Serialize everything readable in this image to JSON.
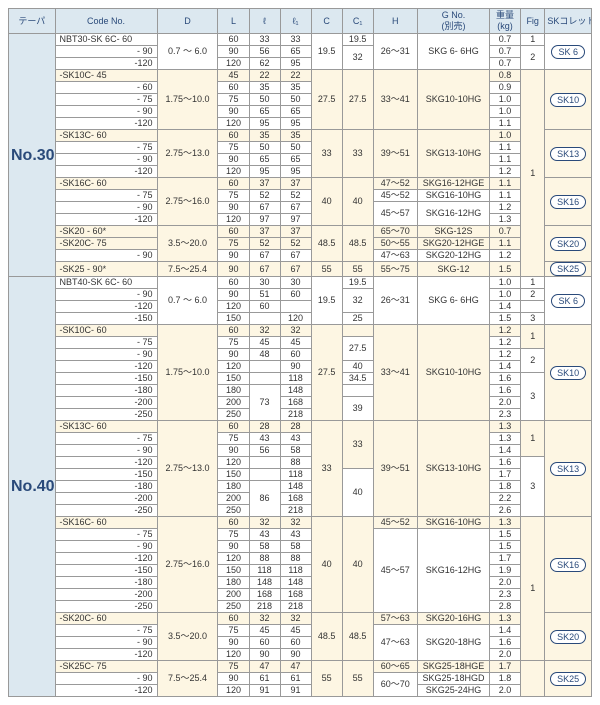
{
  "colors": {
    "header_bg": "#dce8f0",
    "header_fg": "#2a4a7a",
    "highlight_bg": "#fdf6e3",
    "border": "#999999",
    "text": "#333333"
  },
  "headers": {
    "taper": "テーパ",
    "code": "Code No.",
    "D": "D",
    "L": "L",
    "sl": "ℓ",
    "sl1": "ℓ₁",
    "C": "C",
    "C1": "C₁",
    "H": "H",
    "G": "G No.\n(別売)",
    "weight": "重量\n(kg)",
    "fig": "Fig",
    "sk": "SKコレット"
  },
  "tapers": {
    "no30": "No.30",
    "no40": "No.40"
  },
  "sk_labels": {
    "sk6": "SK 6",
    "sk10": "SK10",
    "sk13": "SK13",
    "sk16": "SK16",
    "sk20": "SK20",
    "sk25": "SK25"
  },
  "d_ranges": {
    "d07_60": "0.7 ～ 6.0",
    "d175_100": "1.75～10.0",
    "d275_130": "2.75～13.0",
    "d275_160": "2.75～16.0",
    "d35_200": "3.5～20.0",
    "d75_254": "7.5～25.4"
  },
  "g_labels": {
    "skg6_6hg": "SKG 6- 6HG",
    "skg10_10hg": "SKG10-10HG",
    "skg13_10hg": "SKG13-10HG",
    "skg16_12hge": "SKG16-12HGE",
    "skg16_10hg": "SKG16-10HG",
    "skg16_12hg": "SKG16-12HG",
    "skg_12s": "SKG-12S",
    "skg20_12hge": "SKG20-12HGE",
    "skg20_12hg": "SKG20-12HG",
    "skg_12": "SKG-12",
    "skg20_16hg": "SKG20-16HG",
    "skg20_18hg": "SKG20-18HG",
    "skg25_18hge": "SKG25-18HGE",
    "skg25_18hgd": "SKG25-18HGD",
    "skg25_24hg": "SKG25-24HG"
  },
  "no30": [
    {
      "code": "NBT30-SK 6C- 60",
      "L": "60",
      "sl": "33",
      "sl1": "33",
      "C": "19.5",
      "C1": "19.5",
      "H": "",
      "w": "0.7",
      "fig": "1",
      "hl": false
    },
    {
      "code": "- 90",
      "L": "90",
      "sl": "56",
      "sl1": "65",
      "C": "",
      "C1": "32",
      "H": "26～31",
      "w": "0.7",
      "fig": "",
      "hl": false,
      "fig_val": "2"
    },
    {
      "code": "-120",
      "L": "120",
      "sl": "62",
      "sl1": "95",
      "C": "",
      "C1": "",
      "H": "",
      "w": "0.7",
      "fig": "",
      "hl": false
    },
    {
      "code": "-SK10C- 45",
      "L": "45",
      "sl": "22",
      "sl1": "22",
      "C": "",
      "C1": "",
      "H": "",
      "w": "0.8",
      "fig": "",
      "hl": true
    },
    {
      "code": "- 60",
      "L": "60",
      "sl": "35",
      "sl1": "35",
      "C": "",
      "C1": "",
      "H": "",
      "w": "0.9",
      "fig": "",
      "hl": false
    },
    {
      "code": "- 75",
      "L": "75",
      "sl": "50",
      "sl1": "50",
      "C": "27.5",
      "C1": "27.5",
      "H": "33～41",
      "w": "1.0",
      "fig": "",
      "hl": false
    },
    {
      "code": "- 90",
      "L": "90",
      "sl": "65",
      "sl1": "65",
      "C": "",
      "C1": "",
      "H": "",
      "w": "1.0",
      "fig": "",
      "hl": false
    },
    {
      "code": "-120",
      "L": "120",
      "sl": "95",
      "sl1": "95",
      "C": "",
      "C1": "",
      "H": "",
      "w": "1.1",
      "fig": "",
      "hl": false
    },
    {
      "code": "-SK13C- 60",
      "L": "60",
      "sl": "35",
      "sl1": "35",
      "C": "",
      "C1": "",
      "H": "",
      "w": "1.0",
      "fig": "",
      "hl": true
    },
    {
      "code": "- 75",
      "L": "75",
      "sl": "50",
      "sl1": "50",
      "C": "",
      "C1": "",
      "H": "",
      "w": "1.1",
      "fig": "",
      "hl": false
    },
    {
      "code": "- 90",
      "L": "90",
      "sl": "65",
      "sl1": "65",
      "C": "33",
      "C1": "33",
      "H": "39～51",
      "w": "1.1",
      "fig": "",
      "hl": false
    },
    {
      "code": "-120",
      "L": "120",
      "sl": "95",
      "sl1": "95",
      "C": "",
      "C1": "",
      "H": "",
      "w": "1.2",
      "fig": "",
      "hl": false
    },
    {
      "code": "-SK16C- 60",
      "L": "60",
      "sl": "37",
      "sl1": "37",
      "C": "",
      "C1": "",
      "H": "47～52",
      "w": "1.1",
      "fig": "",
      "hl": true
    },
    {
      "code": "- 75",
      "L": "75",
      "sl": "52",
      "sl1": "52",
      "C": "",
      "C1": "",
      "H": "45～52",
      "w": "1.1",
      "fig": "",
      "hl": false
    },
    {
      "code": "- 90",
      "L": "90",
      "sl": "67",
      "sl1": "67",
      "C": "40",
      "C1": "40",
      "H": "",
      "w": "1.2",
      "fig": "",
      "hl": false
    },
    {
      "code": "-120",
      "L": "120",
      "sl": "97",
      "sl1": "97",
      "C": "",
      "C1": "",
      "H": "45～57",
      "w": "1.3",
      "fig": "",
      "hl": false
    },
    {
      "code": "-SK20 - 60*",
      "L": "60",
      "sl": "37",
      "sl1": "37",
      "C": "",
      "C1": "",
      "H": "65～70",
      "w": "0.7",
      "fig": "",
      "hl": true
    },
    {
      "code": "-SK20C- 75",
      "L": "75",
      "sl": "52",
      "sl1": "52",
      "C": "48.5",
      "C1": "48.5",
      "H": "50～55",
      "w": "1.1",
      "fig": "",
      "hl": true
    },
    {
      "code": "- 90",
      "L": "90",
      "sl": "67",
      "sl1": "67",
      "C": "",
      "C1": "",
      "H": "47～63",
      "w": "1.2",
      "fig": "",
      "hl": false
    },
    {
      "code": "-SK25 - 90*",
      "L": "90",
      "sl": "67",
      "sl1": "67",
      "C": "55",
      "C1": "55",
      "H": "55～75",
      "w": "1.5",
      "fig": "",
      "hl": true
    }
  ],
  "no40": [
    {
      "code": "NBT40-SK 6C- 60",
      "L": "60",
      "sl": "30",
      "sl1": "30",
      "C": "",
      "C1": "",
      "H": "",
      "w": "1.0",
      "fig": "1",
      "hl": false
    },
    {
      "code": "- 90",
      "L": "90",
      "sl": "51",
      "sl1": "60",
      "C": "19.5",
      "C1": "19.5",
      "H": "",
      "w": "1.0",
      "fig": "",
      "hl": false,
      "fig_val": "2"
    },
    {
      "code": "-120",
      "L": "120",
      "sl": "60",
      "sl1": "",
      "C": "",
      "C1": "32",
      "H": "26～31",
      "w": "1.4",
      "fig": "",
      "hl": false
    },
    {
      "code": "-150",
      "L": "150",
      "sl": "",
      "sl1": "120",
      "C": "",
      "C1": "",
      "H": "",
      "w": "1.5",
      "fig": "3",
      "hl": false
    },
    {
      "code": "-SK10C- 60",
      "L": "60",
      "sl": "32",
      "sl1": "32",
      "C": "",
      "C1": "25",
      "H": "",
      "w": "1.2",
      "fig": "",
      "hl": true
    },
    {
      "code": "- 75",
      "L": "75",
      "sl": "45",
      "sl1": "45",
      "C": "",
      "C1": "27.5",
      "H": "",
      "w": "1.2",
      "fig": "1",
      "hl": false
    },
    {
      "code": "- 90",
      "L": "90",
      "sl": "48",
      "sl1": "60",
      "C": "",
      "C1": "",
      "H": "",
      "w": "1.2",
      "fig": "",
      "hl": false,
      "fig_val": "2"
    },
    {
      "code": "-120",
      "L": "120",
      "sl": "",
      "sl1": "90",
      "C": "27.5",
      "C1": "40",
      "H": "",
      "w": "1.4",
      "fig": "",
      "hl": false
    },
    {
      "code": "-150",
      "L": "150",
      "sl": "",
      "sl1": "118",
      "C": "",
      "C1": "34.5",
      "H": "33～41",
      "w": "1.6",
      "fig": "",
      "hl": false
    },
    {
      "code": "-180",
      "L": "180",
      "sl": "73",
      "sl1": "148",
      "C": "",
      "C1": "",
      "H": "",
      "w": "1.6",
      "fig": "",
      "hl": false
    },
    {
      "code": "-200",
      "L": "200",
      "sl": "",
      "sl1": "168",
      "C": "",
      "C1": "39",
      "H": "",
      "w": "2.0",
      "fig": "3",
      "hl": false
    },
    {
      "code": "-250",
      "L": "250",
      "sl": "",
      "sl1": "218",
      "C": "",
      "C1": "",
      "H": "",
      "w": "2.3",
      "fig": "",
      "hl": false
    },
    {
      "code": "-SK13C- 60",
      "L": "60",
      "sl": "28",
      "sl1": "28",
      "C": "",
      "C1": "",
      "H": "",
      "w": "1.3",
      "fig": "",
      "hl": true
    },
    {
      "code": "- 75",
      "L": "75",
      "sl": "43",
      "sl1": "43",
      "C": "",
      "C1": "",
      "H": "",
      "w": "1.3",
      "fig": "1",
      "hl": false
    },
    {
      "code": "- 90",
      "L": "90",
      "sl": "56",
      "sl1": "58",
      "C": "",
      "C1": "33",
      "H": "",
      "w": "1.4",
      "fig": "",
      "hl": false
    },
    {
      "code": "-120",
      "L": "120",
      "sl": "",
      "sl1": "88",
      "C": "33",
      "C1": "",
      "H": "39～51",
      "w": "1.6",
      "fig": "",
      "hl": false
    },
    {
      "code": "-150",
      "L": "150",
      "sl": "",
      "sl1": "118",
      "C": "",
      "C1": "",
      "H": "",
      "w": "1.7",
      "fig": "",
      "hl": false
    },
    {
      "code": "-180",
      "L": "180",
      "sl": "86",
      "sl1": "148",
      "C": "",
      "C1": "",
      "H": "",
      "w": "1.8",
      "fig": "",
      "hl": false
    },
    {
      "code": "-200",
      "L": "200",
      "sl": "",
      "sl1": "168",
      "C": "",
      "C1": "40",
      "H": "",
      "w": "2.2",
      "fig": "3",
      "hl": false
    },
    {
      "code": "-250",
      "L": "250",
      "sl": "",
      "sl1": "218",
      "C": "",
      "C1": "",
      "H": "",
      "w": "2.6",
      "fig": "",
      "hl": false
    },
    {
      "code": "-SK16C- 60",
      "L": "60",
      "sl": "32",
      "sl1": "32",
      "C": "",
      "C1": "",
      "H": "45～52",
      "w": "1.3",
      "fig": "",
      "hl": true
    },
    {
      "code": "- 75",
      "L": "75",
      "sl": "43",
      "sl1": "43",
      "C": "",
      "C1": "",
      "H": "",
      "w": "1.5",
      "fig": "",
      "hl": false
    },
    {
      "code": "- 90",
      "L": "90",
      "sl": "58",
      "sl1": "58",
      "C": "",
      "C1": "",
      "H": "",
      "w": "1.5",
      "fig": "",
      "hl": false
    },
    {
      "code": "-120",
      "L": "120",
      "sl": "88",
      "sl1": "88",
      "C": "40",
      "C1": "40",
      "H": "",
      "w": "1.7",
      "fig": "",
      "hl": false
    },
    {
      "code": "-150",
      "L": "150",
      "sl": "118",
      "sl1": "118",
      "C": "",
      "C1": "",
      "H": "45～57",
      "w": "1.9",
      "fig": "",
      "hl": false
    },
    {
      "code": "-180",
      "L": "180",
      "sl": "148",
      "sl1": "148",
      "C": "",
      "C1": "",
      "H": "",
      "w": "2.0",
      "fig": "",
      "hl": false
    },
    {
      "code": "-200",
      "L": "200",
      "sl": "168",
      "sl1": "168",
      "C": "",
      "C1": "",
      "H": "",
      "w": "2.3",
      "fig": "",
      "hl": false
    },
    {
      "code": "-250",
      "L": "250",
      "sl": "218",
      "sl1": "218",
      "C": "",
      "C1": "",
      "H": "",
      "w": "2.8",
      "fig": "",
      "hl": false
    },
    {
      "code": "-SK20C- 60",
      "L": "60",
      "sl": "32",
      "sl1": "32",
      "C": "",
      "C1": "",
      "H": "57～63",
      "w": "1.3",
      "fig": "",
      "hl": true
    },
    {
      "code": "- 75",
      "L": "75",
      "sl": "45",
      "sl1": "45",
      "C": "",
      "C1": "",
      "H": "",
      "w": "1.4",
      "fig": "",
      "hl": false
    },
    {
      "code": "- 90",
      "L": "90",
      "sl": "60",
      "sl1": "60",
      "C": "48.5",
      "C1": "48.5",
      "H": "47～63",
      "w": "1.6",
      "fig": "",
      "hl": false
    },
    {
      "code": "-120",
      "L": "120",
      "sl": "90",
      "sl1": "90",
      "C": "",
      "C1": "",
      "H": "",
      "w": "2.0",
      "fig": "",
      "hl": false
    },
    {
      "code": "-SK25C- 75",
      "L": "75",
      "sl": "47",
      "sl1": "47",
      "C": "",
      "C1": "",
      "H": "60～65",
      "w": "1.7",
      "fig": "",
      "hl": true
    },
    {
      "code": "- 90",
      "L": "90",
      "sl": "61",
      "sl1": "61",
      "C": "55",
      "C1": "55",
      "H": "",
      "w": "1.8",
      "fig": "",
      "hl": false
    },
    {
      "code": "-120",
      "L": "120",
      "sl": "91",
      "sl1": "91",
      "C": "",
      "C1": "",
      "H": "60～70",
      "w": "2.0",
      "fig": "",
      "hl": false
    }
  ]
}
